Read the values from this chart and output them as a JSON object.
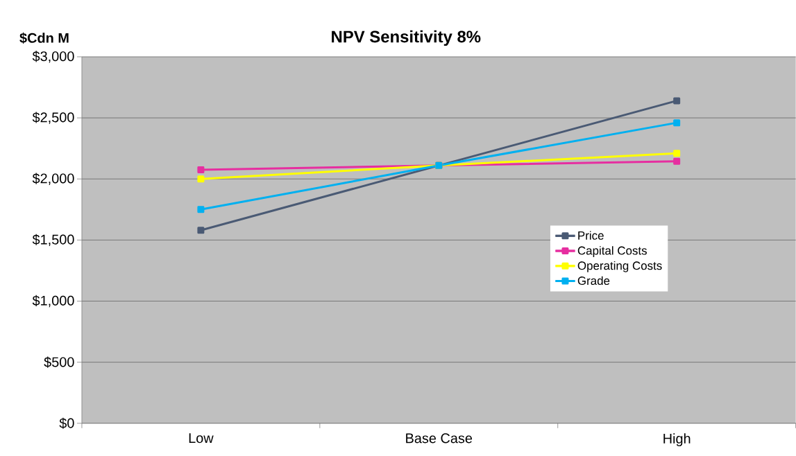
{
  "chart_data": {
    "type": "line",
    "title": "NPV Sensitivity 8%",
    "ylabel": "$Cdn M",
    "categories": [
      "Low",
      "Base Case",
      "High"
    ],
    "series": [
      {
        "name": "Price",
        "color": "#4a5a74",
        "values": [
          1580,
          2110,
          2640
        ]
      },
      {
        "name": "Capital Costs",
        "color": "#e62ea0",
        "values": [
          2075,
          2110,
          2145
        ]
      },
      {
        "name": "Operating Costs",
        "color": "#ffff00",
        "values": [
          2000,
          2110,
          2210
        ]
      },
      {
        "name": "Grade",
        "color": "#00b0f0",
        "values": [
          1750,
          2110,
          2460
        ]
      }
    ],
    "ylim": [
      0,
      3000
    ],
    "yticks": [
      {
        "value": 0,
        "label": "$0"
      },
      {
        "value": 500,
        "label": "$500"
      },
      {
        "value": 1000,
        "label": "$1,000"
      },
      {
        "value": 1500,
        "label": "$1,500"
      },
      {
        "value": 2000,
        "label": "$2,000"
      },
      {
        "value": 2500,
        "label": "$2,500"
      },
      {
        "value": 3000,
        "label": "$3,000"
      }
    ],
    "grid": "y",
    "legend": "right",
    "marker": "square",
    "line_style": "solid"
  }
}
